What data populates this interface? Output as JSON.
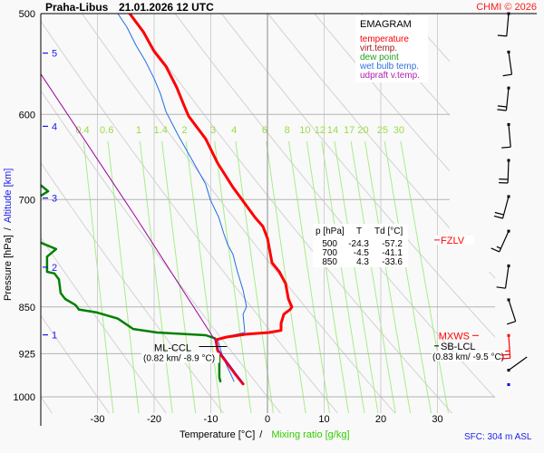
{
  "header": {
    "station": "Praha-Libus",
    "datetime": "21.01.2026 12 UTC",
    "copyright": "CHMI © 2026"
  },
  "legend": {
    "title": "EMAGRAM",
    "items": [
      {
        "label": "temperature",
        "color": "#ff0000"
      },
      {
        "label": "virt.temp.",
        "color": "#a01818"
      },
      {
        "label": "dew point",
        "color": "#20a020"
      },
      {
        "label": "wet bulb temp.",
        "color": "#3070e0"
      },
      {
        "label": "udpraft v.temp.",
        "color": "#b020b0"
      }
    ]
  },
  "table": {
    "headers": [
      "p [hPa]",
      "T",
      "Td [°C]"
    ],
    "rows": [
      [
        "500",
        "-24.3",
        "-57.2"
      ],
      [
        "700",
        "-4.5",
        "-41.1"
      ],
      [
        "850",
        "4.3",
        "-33.6"
      ]
    ]
  },
  "annotations": {
    "fzlv": "FZLV",
    "mxws": "MXWS",
    "sb_lcl": "SB-LCL",
    "sb_lcl_detail": "(0.83 km/ -9.5 °C)",
    "ml_ccl": "ML-CCL",
    "ml_ccl_detail": "(0.82 km/ -8.9 °C)",
    "fzlv_color": "#ff0000",
    "mxws_color": "#ff0000"
  },
  "footer": {
    "surface": "SFC: 304 m ASL"
  },
  "chart_data": {
    "type": "line",
    "subtype": "emagram",
    "title": "Praha-Libus 21.01.2026 12 UTC",
    "xlabel": "Temperature [°C]",
    "xlabel_separator": "/",
    "xlabel2": "Mixing ratio [g/kg]",
    "ylabel": "Pressure [hPa]",
    "ylabel_separator": "/",
    "ylabel2": "Altitude [km]",
    "xlim": [
      -40,
      40
    ],
    "ylim": [
      1030,
      500
    ],
    "y_scale": "log",
    "grid": true,
    "x_ticks": [
      -30,
      -20,
      -10,
      0,
      10,
      20,
      30
    ],
    "y_ticks": [
      500,
      600,
      700,
      850,
      925,
      1000
    ],
    "altitude_ticks": [
      {
        "km": 1,
        "p": 894
      },
      {
        "km": 2,
        "p": 791
      },
      {
        "km": 3,
        "p": 698
      },
      {
        "km": 4,
        "p": 613
      },
      {
        "km": 5,
        "p": 537
      }
    ],
    "mixing_ratio_lines": [
      0.4,
      0.6,
      1,
      1.4,
      2,
      3,
      4,
      6,
      8,
      10,
      12,
      14,
      17,
      20,
      25,
      30
    ],
    "dry_adiabats_t1000": [
      -40,
      -30,
      -20,
      -10,
      0,
      10,
      20,
      30,
      40,
      50,
      60,
      70,
      80,
      90,
      100
    ],
    "series": [
      {
        "id": "temperature",
        "name": "temperature",
        "color": "#ff0000",
        "points": [
          [
            500,
            -24.3
          ],
          [
            516.7,
            -21.9
          ],
          [
            535.4,
            -20.0
          ],
          [
            550.1,
            -17.9
          ],
          [
            571.6,
            -16.0
          ],
          [
            590.7,
            -14.7
          ],
          [
            602,
            -13.9
          ],
          [
            627.2,
            -10.9
          ],
          [
            655.2,
            -8.8
          ],
          [
            684.5,
            -6.1
          ],
          [
            700,
            -4.5
          ],
          [
            722.9,
            -2.2
          ],
          [
            734.8,
            -0.8
          ],
          [
            750.7,
            0.0
          ],
          [
            784.6,
            0.8
          ],
          [
            797.6,
            2.1
          ],
          [
            814.8,
            3.2
          ],
          [
            837.8,
            3.7
          ],
          [
            850,
            4.3
          ],
          [
            853.8,
            4.0
          ],
          [
            861.2,
            2.9
          ],
          [
            875.4,
            2.4
          ],
          [
            886.8,
            2.4
          ],
          [
            890.2,
            0.3
          ],
          [
            892.6,
            -3.5
          ],
          [
            897.4,
            -7.2
          ],
          [
            902,
            -9.1
          ],
          [
            919.3,
            -8.8
          ],
          [
            939.7,
            -7.2
          ],
          [
            960.7,
            -5.6
          ],
          [
            977,
            -4.3
          ]
        ]
      },
      {
        "id": "dew_point",
        "name": "dew point",
        "color": "#008000",
        "points": [
          [
            676,
            -41.5
          ],
          [
            682.1,
            -40.0
          ],
          [
            689.5,
            -38.7
          ],
          [
            693.8,
            -39.7
          ],
          [
            700,
            -41.1
          ],
          [
            752,
            -41.0
          ],
          [
            757.7,
            -39.7
          ],
          [
            765.5,
            -37.3
          ],
          [
            776.1,
            -38.9
          ],
          [
            797.6,
            -38.9
          ],
          [
            800,
            -37.6
          ],
          [
            808.7,
            -36.8
          ],
          [
            828.9,
            -36.5
          ],
          [
            837.8,
            -35.7
          ],
          [
            846.9,
            -33.9
          ],
          [
            850,
            -33.6
          ],
          [
            853.8,
            -33.3
          ],
          [
            858.5,
            -30.1
          ],
          [
            868.1,
            -26.4
          ],
          [
            884.5,
            -23.7
          ],
          [
            890.2,
            -19.5
          ],
          [
            894.5,
            -10.9
          ],
          [
            899.4,
            -9.3
          ],
          [
            902,
            -9.1
          ],
          [
            930.9,
            -8.5
          ],
          [
            965.2,
            -8.5
          ],
          [
            972.4,
            -8.3
          ]
        ]
      },
      {
        "id": "wet_bulb",
        "name": "wet bulb temp.",
        "color": "#1e6ee6",
        "points": [
          [
            500,
            -26.4
          ],
          [
            512.4,
            -24.8
          ],
          [
            529.5,
            -23.2
          ],
          [
            544.2,
            -21.6
          ],
          [
            562.3,
            -20.0
          ],
          [
            577.8,
            -18.9
          ],
          [
            597.1,
            -17.9
          ],
          [
            623.8,
            -15.7
          ],
          [
            648.1,
            -13.6
          ],
          [
            680.7,
            -10.9
          ],
          [
            700,
            -10.1
          ],
          [
            722.9,
            -8.6
          ],
          [
            744.6,
            -7.7
          ],
          [
            759.7,
            -7.0
          ],
          [
            772.6,
            -6.1
          ],
          [
            797.6,
            -5.3
          ],
          [
            824.4,
            -4.3
          ],
          [
            849.7,
            -3.7
          ],
          [
            861.2,
            -4.3
          ],
          [
            890.2,
            -4.0
          ],
          [
            897.4,
            -7.7
          ],
          [
            900.6,
            -8.8
          ],
          [
            927.1,
            -8.0
          ],
          [
            944.6,
            -7.2
          ],
          [
            972.4,
            -5.9
          ]
        ]
      },
      {
        "id": "updraft_virtual_temperature",
        "name": "udpraft v.temp.",
        "color": "#a000a0",
        "points": [
          [
            554,
            -40.8
          ],
          [
            557.7,
            -40.0
          ],
          [
            722.9,
            -23.2
          ],
          [
            902,
            -9.3
          ],
          [
            919.3,
            -8.6
          ],
          [
            975.6,
            -4.3
          ]
        ]
      }
    ],
    "wind_barbs": [
      {
        "p": 500,
        "dir": 185,
        "speed_kt": 10
      },
      {
        "p": 536,
        "dir": 172,
        "speed_kt": 10
      },
      {
        "p": 572,
        "dir": 186,
        "speed_kt": 20
      },
      {
        "p": 611,
        "dir": 175,
        "speed_kt": 10
      },
      {
        "p": 652,
        "dir": 182,
        "speed_kt": 20
      },
      {
        "p": 696,
        "dir": 195,
        "speed_kt": 20
      },
      {
        "p": 741,
        "dir": 204,
        "speed_kt": 15
      },
      {
        "p": 789,
        "dir": 188,
        "speed_kt": 10
      },
      {
        "p": 839,
        "dir": 162,
        "speed_kt": 10
      },
      {
        "p": 895,
        "dir": 176,
        "speed_kt": 25,
        "color": "#ff0000"
      },
      {
        "p": 953,
        "dir": 54,
        "speed_kt": 0
      }
    ],
    "surface_marker": {
      "p": 978,
      "color": "#0000ff"
    },
    "levels": {
      "fzlv_p": 753,
      "mxws_p": 895,
      "sb_lcl_p": 912,
      "ml_ccl_p": 913,
      "ml_ccl_t": -8.9
    }
  }
}
